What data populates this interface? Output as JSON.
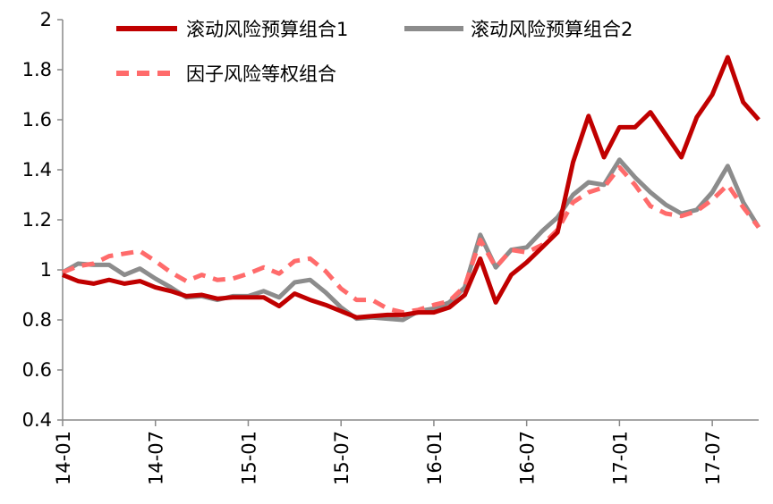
{
  "chart_data": {
    "type": "line",
    "title": "",
    "xlabel": "",
    "ylabel": "",
    "ylim": [
      0.4,
      2
    ],
    "yticks": [
      "0.4",
      "0.6",
      "0.8",
      "1",
      "1.2",
      "1.4",
      "1.6",
      "1.8",
      "2"
    ],
    "xticks": [
      {
        "label": "14-01",
        "index": 0
      },
      {
        "label": "14-07",
        "index": 6
      },
      {
        "label": "15-01",
        "index": 12
      },
      {
        "label": "15-07",
        "index": 18
      },
      {
        "label": "16-01",
        "index": 24
      },
      {
        "label": "16-07",
        "index": 30
      },
      {
        "label": "17-01",
        "index": 36
      },
      {
        "label": "17-07",
        "index": 42
      }
    ],
    "grid": false,
    "legend_position": "top",
    "series": [
      {
        "name": "滚动风险预算组合1",
        "color": "#c00000",
        "dash": "solid",
        "values": [
          0.98,
          0.955,
          0.945,
          0.96,
          0.945,
          0.955,
          0.93,
          0.915,
          0.895,
          0.9,
          0.885,
          0.89,
          0.89,
          0.89,
          0.855,
          0.905,
          0.88,
          0.86,
          0.835,
          0.81,
          0.815,
          0.82,
          0.82,
          0.83,
          0.83,
          0.85,
          0.9,
          1.045,
          0.87,
          0.98,
          1.03,
          1.09,
          1.15,
          1.43,
          1.615,
          1.45,
          1.57,
          1.57,
          1.63,
          1.54,
          1.45,
          1.61,
          1.7,
          1.85,
          1.67,
          1.6
        ]
      },
      {
        "name": "滚动风险预算组合2",
        "color": "#8c8c8c",
        "dash": "solid",
        "values": [
          0.99,
          1.025,
          1.02,
          1.02,
          0.98,
          1.005,
          0.965,
          0.93,
          0.89,
          0.895,
          0.88,
          0.895,
          0.895,
          0.915,
          0.89,
          0.95,
          0.96,
          0.91,
          0.85,
          0.805,
          0.81,
          0.805,
          0.8,
          0.835,
          0.845,
          0.87,
          0.93,
          1.14,
          1.01,
          1.08,
          1.09,
          1.155,
          1.21,
          1.3,
          1.35,
          1.34,
          1.44,
          1.37,
          1.31,
          1.26,
          1.225,
          1.24,
          1.31,
          1.415,
          1.27,
          1.17
        ]
      },
      {
        "name": "因子风险等权组合",
        "color": "#ff6b6b",
        "dash": "dashed",
        "values": [
          0.99,
          1.015,
          1.025,
          1.055,
          1.065,
          1.075,
          1.035,
          0.99,
          0.955,
          0.98,
          0.96,
          0.965,
          0.985,
          1.01,
          0.985,
          1.035,
          1.045,
          0.995,
          0.925,
          0.88,
          0.88,
          0.845,
          0.83,
          0.84,
          0.86,
          0.875,
          0.935,
          1.12,
          1.01,
          1.08,
          1.07,
          1.1,
          1.16,
          1.27,
          1.31,
          1.33,
          1.41,
          1.34,
          1.255,
          1.225,
          1.215,
          1.235,
          1.28,
          1.34,
          1.25,
          1.17
        ]
      }
    ]
  }
}
